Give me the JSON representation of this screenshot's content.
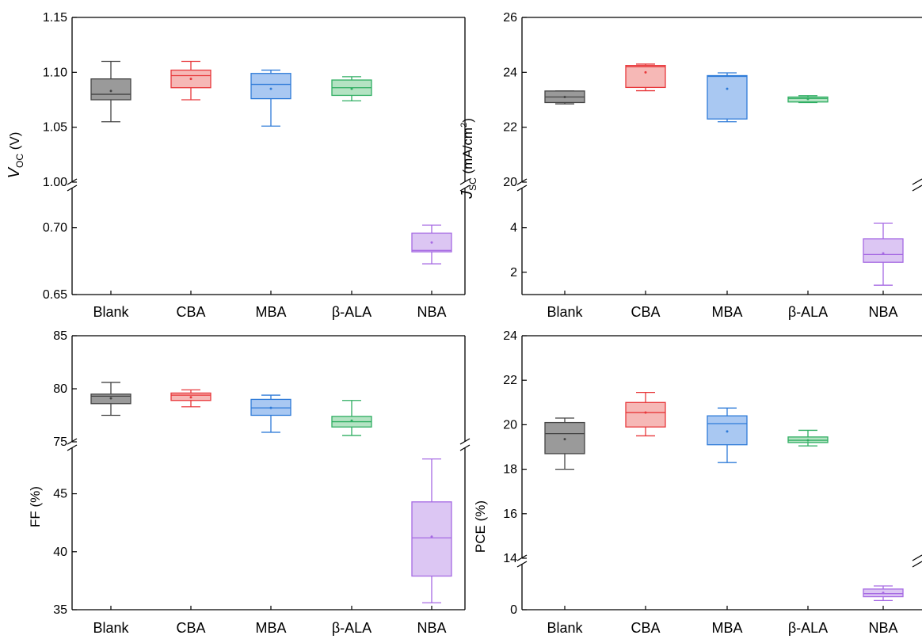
{
  "colors": {
    "Blank": {
      "stroke": "#444444",
      "fill": "#9a9a9a"
    },
    "CBA": {
      "stroke": "#e8383b",
      "fill": "#f6b8b6"
    },
    "MBA": {
      "stroke": "#2f7bd8",
      "fill": "#a9c8f2"
    },
    "β-ALA": {
      "stroke": "#2fae62",
      "fill": "#b4e3c3"
    },
    "NBA": {
      "stroke": "#a66ae3",
      "fill": "#dcc6f3"
    }
  },
  "chart_data": [
    {
      "type": "box",
      "panel": "top-left",
      "ylabel": {
        "italic": "V",
        "sub": "OC",
        "rest": " (V)"
      },
      "categories": [
        "Blank",
        "CBA",
        "MBA",
        "β-ALA",
        "NBA"
      ],
      "broken_axis": true,
      "upper_segment": {
        "ylim": [
          1.0,
          1.15
        ],
        "ticks": [
          "1.00",
          "1.05",
          "1.10",
          "1.15"
        ]
      },
      "lower_segment": {
        "ylim": [
          0.65,
          0.73
        ],
        "ticks": [
          "0.65",
          "0.70"
        ]
      },
      "boxes": [
        {
          "category": "Blank",
          "min": 1.055,
          "q1": 1.075,
          "median": 1.08,
          "q3": 1.094,
          "max": 1.11,
          "mean": 1.083
        },
        {
          "category": "CBA",
          "min": 1.075,
          "q1": 1.086,
          "median": 1.097,
          "q3": 1.102,
          "max": 1.11,
          "mean": 1.094
        },
        {
          "category": "MBA",
          "min": 1.051,
          "q1": 1.076,
          "median": 1.089,
          "q3": 1.099,
          "max": 1.102,
          "mean": 1.085
        },
        {
          "category": "β-ALA",
          "min": 1.074,
          "q1": 1.079,
          "median": 1.086,
          "q3": 1.093,
          "max": 1.096,
          "mean": 1.085
        },
        {
          "category": "NBA",
          "min": 0.673,
          "q1": 0.682,
          "median": 0.683,
          "q3": 0.696,
          "max": 0.702,
          "mean": 0.689
        }
      ]
    },
    {
      "type": "box",
      "panel": "top-right",
      "ylabel": {
        "italic": "J",
        "sub": "SC",
        "rest": " (mA/cm",
        "sup": "2",
        "end": ")"
      },
      "categories": [
        "Blank",
        "CBA",
        "MBA",
        "β-ALA",
        "NBA"
      ],
      "broken_axis": true,
      "upper_segment": {
        "ylim": [
          20,
          26
        ],
        "ticks": [
          "20",
          "22",
          "24",
          "26"
        ]
      },
      "lower_segment": {
        "ylim": [
          1,
          5.8
        ],
        "ticks": [
          "2",
          "4"
        ]
      },
      "boxes": [
        {
          "category": "Blank",
          "min": 22.85,
          "q1": 22.9,
          "median": 23.1,
          "q3": 23.32,
          "max": 23.32,
          "mean": 23.1
        },
        {
          "category": "CBA",
          "min": 23.33,
          "q1": 23.45,
          "median": 24.2,
          "q3": 24.25,
          "max": 24.3,
          "mean": 24.0
        },
        {
          "category": "MBA",
          "min": 22.2,
          "q1": 22.3,
          "median": 23.85,
          "q3": 23.88,
          "max": 23.98,
          "mean": 23.4
        },
        {
          "category": "β-ALA",
          "min": 22.9,
          "q1": 22.92,
          "median": 23.05,
          "q3": 23.1,
          "max": 23.15,
          "mean": 23.03
        },
        {
          "category": "NBA",
          "min": 1.42,
          "q1": 2.45,
          "median": 2.8,
          "q3": 3.5,
          "max": 4.2,
          "mean": 2.85
        }
      ]
    },
    {
      "type": "box",
      "panel": "bottom-left",
      "ylabel": {
        "rest": "FF (%)"
      },
      "categories": [
        "Blank",
        "CBA",
        "MBA",
        "β-ALA",
        "NBA"
      ],
      "broken_axis": true,
      "upper_segment": {
        "ylim": [
          75,
          85
        ],
        "ticks": [
          "75",
          "80",
          "85"
        ]
      },
      "lower_segment": {
        "ylim": [
          35,
          49
        ],
        "ticks": [
          "35",
          "40",
          "45"
        ]
      },
      "boxes": [
        {
          "category": "Blank",
          "min": 77.5,
          "q1": 78.6,
          "median": 79.3,
          "q3": 79.5,
          "max": 80.6,
          "mean": 79.1
        },
        {
          "category": "CBA",
          "min": 78.3,
          "q1": 78.9,
          "median": 79.4,
          "q3": 79.6,
          "max": 79.9,
          "mean": 79.2
        },
        {
          "category": "MBA",
          "min": 75.9,
          "q1": 77.5,
          "median": 78.2,
          "q3": 79.0,
          "max": 79.4,
          "mean": 78.2
        },
        {
          "category": "β-ALA",
          "min": 75.6,
          "q1": 76.4,
          "median": 76.9,
          "q3": 77.4,
          "max": 78.9,
          "mean": 77.0
        },
        {
          "category": "NBA",
          "min": 35.6,
          "q1": 37.9,
          "median": 41.2,
          "q3": 44.3,
          "max": 48.0,
          "mean": 41.3
        }
      ]
    },
    {
      "type": "box",
      "panel": "bottom-right",
      "ylabel": {
        "rest": "PCE (%)"
      },
      "categories": [
        "Blank",
        "CBA",
        "MBA",
        "β-ALA",
        "NBA"
      ],
      "broken_axis": true,
      "upper_segment": {
        "ylim": [
          14,
          24
        ],
        "ticks": [
          "14",
          "16",
          "18",
          "20",
          "22",
          "24"
        ]
      },
      "lower_segment": {
        "ylim": [
          0,
          3
        ],
        "ticks": [
          "0"
        ]
      },
      "boxes": [
        {
          "category": "Blank",
          "min": 18.0,
          "q1": 18.7,
          "median": 19.6,
          "q3": 20.1,
          "max": 20.3,
          "mean": 19.35
        },
        {
          "category": "CBA",
          "min": 19.5,
          "q1": 19.9,
          "median": 20.55,
          "q3": 21.0,
          "max": 21.45,
          "mean": 20.55
        },
        {
          "category": "MBA",
          "min": 18.3,
          "q1": 19.1,
          "median": 20.05,
          "q3": 20.4,
          "max": 20.75,
          "mean": 19.7
        },
        {
          "category": "β-ALA",
          "min": 19.05,
          "q1": 19.2,
          "median": 19.3,
          "q3": 19.45,
          "max": 19.75,
          "mean": 19.3
        },
        {
          "category": "NBA",
          "min": 0.6,
          "q1": 0.85,
          "median": 1.05,
          "q3": 1.35,
          "max": 1.55,
          "mean": 1.1
        }
      ]
    }
  ]
}
